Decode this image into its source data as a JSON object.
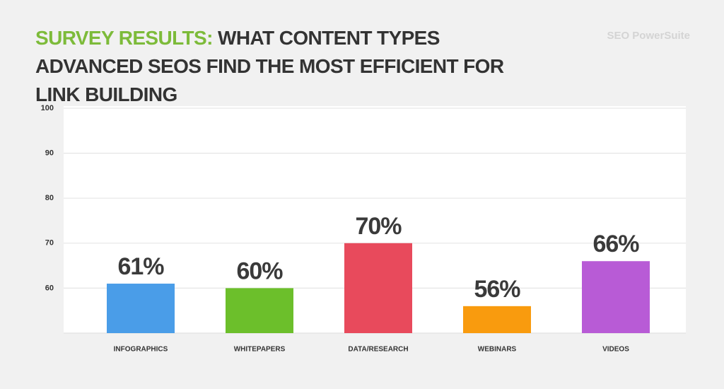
{
  "chart_data": {
    "type": "bar",
    "title_highlight": "SURVEY RESULTS:",
    "title": "WHAT CONTENT TYPES ADVANCED SEOS FIND THE MOST EFFICIENT FOR LINK BUILDING",
    "logo": "SEO PowerSuite",
    "categories": [
      "INFOGRAPHICS",
      "WHITEPAPERS",
      "DATA/RESEARCH",
      "WEBINARS",
      "VIDEOS"
    ],
    "values": [
      61,
      60,
      70,
      56,
      66
    ],
    "value_labels": [
      "61%",
      "60%",
      "70%",
      "56%",
      "66%"
    ],
    "colors": [
      "#4a9de8",
      "#6cbf2b",
      "#e84a5c",
      "#f99b0e",
      "#b85bd6"
    ],
    "ylim": [
      50,
      100
    ],
    "yticks": [
      60,
      70,
      80,
      90,
      100
    ],
    "grid": true
  }
}
